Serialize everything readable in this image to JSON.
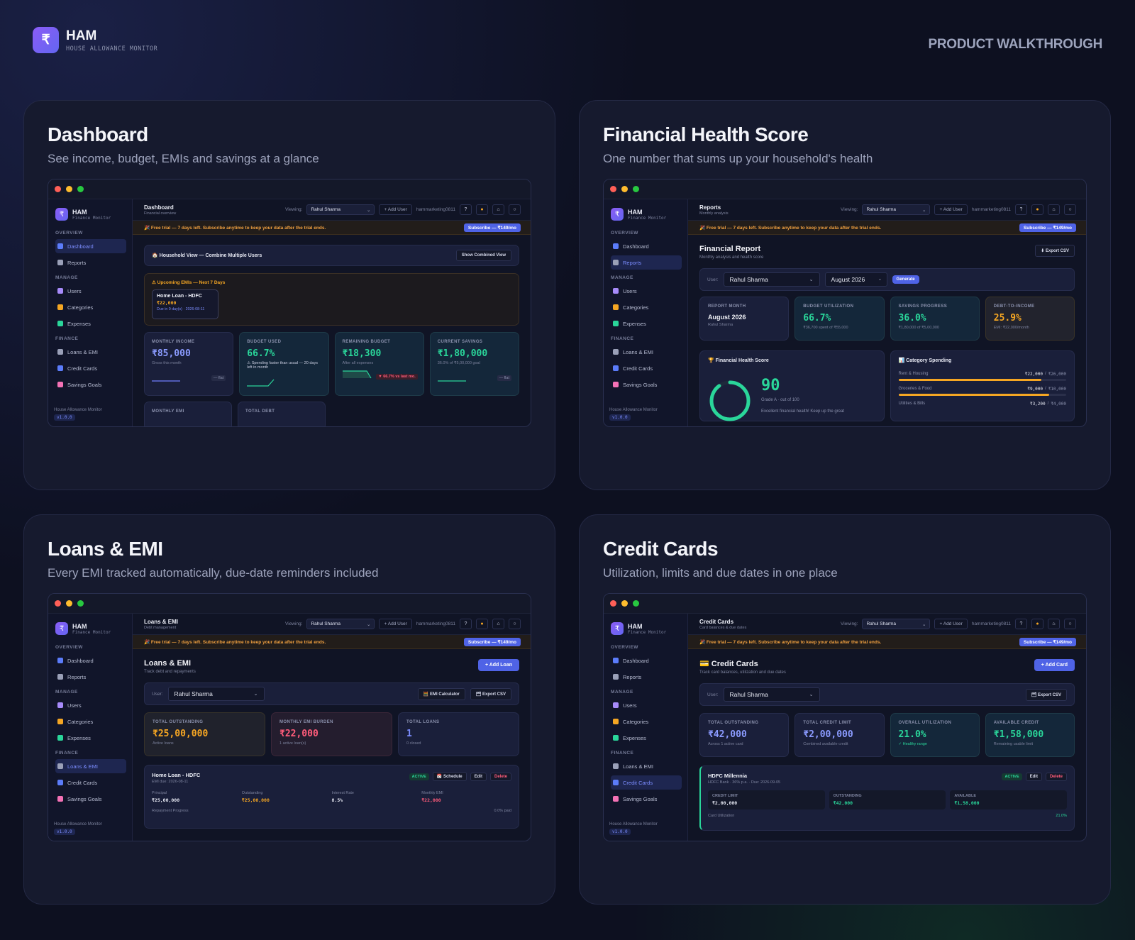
{
  "brand": {
    "name": "HAM",
    "subtitle": "HOUSE ALLOWANCE MONITOR",
    "logo_icon": "rupee-icon",
    "header_right": "PRODUCT WALKTHROUGH"
  },
  "colors": {
    "accent": "#6366f1",
    "green": "#2ad69a",
    "orange": "#f5a623",
    "red": "#ff5c7a",
    "blue": "#7c8dff"
  },
  "common": {
    "app_name": "HAM",
    "app_sub": "Finance Monitor",
    "sections": {
      "overview": "OVERVIEW",
      "manage": "MANAGE",
      "finance": "FINANCE"
    },
    "nav": {
      "dashboard": "Dashboard",
      "reports": "Reports",
      "users": "Users",
      "categories": "Categories",
      "expenses": "Expenses",
      "loans": "Loans & EMI",
      "credit_cards": "Credit Cards",
      "savings": "Savings Goals"
    },
    "footer": "House Allowance Monitor",
    "version": "v1.0.0",
    "viewing_label": "Viewing:",
    "viewing_user": "Rahul Sharma",
    "add_user": "+ Add User",
    "account": "hammarketing0811",
    "help": "?",
    "trial": "🎉 Free trial — 7 days left. Subscribe anytime to keep your data after the trial ends.",
    "subscribe": "Subscribe — ₹149/mo",
    "user_label": "User:",
    "user_value": "Rahul Sharma"
  },
  "panels": {
    "dashboard": {
      "title": "Dashboard",
      "subtitle": "See income, budget, EMIs and savings at a glance",
      "top_title": "Dashboard",
      "top_sub": "Financial overview",
      "household": "🏠 Household View — Combine Multiple Users",
      "household_btn": "Show Combined View",
      "emi_header": "⚠ Upcoming EMIs — Next 7 Days",
      "emi": {
        "name": "Home Loan - HDFC",
        "amount": "₹22,000",
        "due": "Due in 0 day(s) · 2026-08-11"
      },
      "kpis": [
        {
          "label": "MONTHLY INCOME",
          "value": "₹85,000",
          "sub": "Gross this month",
          "tag": "— flat"
        },
        {
          "label": "BUDGET USED",
          "value": "66.7%",
          "sub": "⚠ Spending faster than usual — 20 days left in month",
          "tag": ""
        },
        {
          "label": "REMAINING BUDGET",
          "value": "₹18,300",
          "sub": "After all expenses",
          "tag": "▼ 66.7% vs last mo."
        },
        {
          "label": "CURRENT SAVINGS",
          "value": "₹1,80,000",
          "sub": "36.0% of ₹5,00,000 goal",
          "tag": "— flat"
        }
      ],
      "bottom": [
        "MONTHLY EMI",
        "TOTAL DEBT"
      ]
    },
    "health": {
      "title": "Financial Health Score",
      "subtitle": "One number that sums up your household's health",
      "top_title": "Reports",
      "top_sub": "Monthly analysis",
      "report_title": "Financial Report",
      "report_sub": "Monthly analysis and health score",
      "export": "⬇ Export CSV",
      "month": "August 2026",
      "generate": "Generate",
      "kpis": [
        {
          "label": "REPORT MONTH",
          "value": "August 2026",
          "sub": "Rahul Sharma"
        },
        {
          "label": "BUDGET UTILIZATION",
          "value": "66.7%",
          "sub": "₹36,700 spent of ₹55,000"
        },
        {
          "label": "SAVINGS PROGRESS",
          "value": "36.0%",
          "sub": "₹1,80,000 of ₹5,00,000"
        },
        {
          "label": "DEBT-TO-INCOME",
          "value": "25.9%",
          "sub": "EMI: ₹22,000/month"
        }
      ],
      "score_title": "🏆 Financial Health Score",
      "score": "90",
      "score_progress": 0.9,
      "grade": "Grade A · out of 100",
      "score_note": "Excellent financial health! Keep up the great",
      "cat_title": "📊 Category Spending",
      "categories": [
        {
          "name": "Rent & Housing",
          "amount": "₹22,000",
          "limit": "₹26,000",
          "fraction": 0.85
        },
        {
          "name": "Groceries & Food",
          "amount": "₹9,000",
          "limit": "₹10,000",
          "fraction": 0.9
        },
        {
          "name": "Utilities & Bills",
          "amount": "₹3,200",
          "limit": "₹4,000",
          "fraction": 0.8
        }
      ]
    },
    "loans": {
      "title": "Loans & EMI",
      "subtitle": "Every EMI tracked automatically, due-date reminders included",
      "top_title": "Loans & EMI",
      "top_sub": "Debt management",
      "page_title": "Loans & EMI",
      "page_sub": "Track debt and repayments",
      "add_btn": "+ Add Loan",
      "emi_calc": "🧮 EMI Calculator",
      "export": "🗂 Export CSV",
      "kpis": [
        {
          "label": "TOTAL OUTSTANDING",
          "value": "₹25,00,000",
          "sub": "Active loans"
        },
        {
          "label": "MONTHLY EMI BURDEN",
          "value": "₹22,000",
          "sub": "1 active loan(s)"
        },
        {
          "label": "TOTAL LOANS",
          "value": "1",
          "sub": "0 closed"
        }
      ],
      "loan": {
        "name": "Home Loan - HDFC",
        "due": "EMI due: 2026-08-11",
        "status": "ACTIVE",
        "schedule": "📅 Schedule",
        "edit": "Edit",
        "delete": "Delete",
        "fields": [
          {
            "label": "Principal",
            "value": "₹25,00,000"
          },
          {
            "label": "Outstanding",
            "value": "₹25,00,000"
          },
          {
            "label": "Interest Rate",
            "value": "8.5%"
          },
          {
            "label": "Monthly EMI",
            "value": "₹22,000"
          }
        ],
        "progress_label": "Repayment Progress",
        "progress_value": "0.0% paid"
      }
    },
    "cards": {
      "title": "Credit Cards",
      "subtitle": "Utilization, limits and due dates in one place",
      "top_title": "Credit Cards",
      "top_sub": "Card balances & due dates",
      "page_title": "💳 Credit Cards",
      "page_sub": "Track card balances, utilization and due dates",
      "add_btn": "+ Add Card",
      "export": "🗂 Export CSV",
      "kpis": [
        {
          "label": "TOTAL OUTSTANDING",
          "value": "₹42,000",
          "sub": "Across 1 active card"
        },
        {
          "label": "TOTAL CREDIT LIMIT",
          "value": "₹2,00,000",
          "sub": "Combined available credit"
        },
        {
          "label": "OVERALL UTILIZATION",
          "value": "21.0%",
          "sub": "✓ Healthy range"
        },
        {
          "label": "AVAILABLE CREDIT",
          "value": "₹1,58,000",
          "sub": "Remaining usable limit"
        }
      ],
      "card": {
        "name": "HDFC Millennia",
        "meta": "HDFC Bank · 36% p.a. · Due: 2026-09-05",
        "status": "ACTIVE",
        "edit": "Edit",
        "delete": "Delete",
        "fields": [
          {
            "label": "CREDIT LIMIT",
            "value": "₹2,00,000"
          },
          {
            "label": "OUTSTANDING",
            "value": "₹42,000"
          },
          {
            "label": "AVAILABLE",
            "value": "₹1,58,000"
          }
        ],
        "util_label": "Card Utilization",
        "util_value": "21.0%"
      }
    }
  }
}
